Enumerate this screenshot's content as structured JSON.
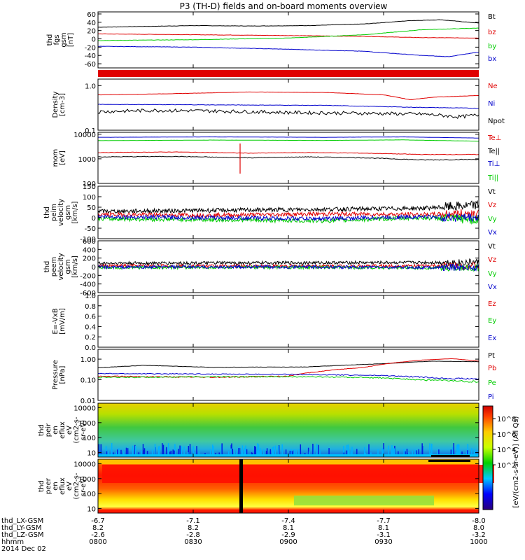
{
  "title": "P3 (TH-D) fields and on-board moments overview",
  "date": "2014 Dec 02",
  "colors": {
    "black": "#000000",
    "red": "#e00000",
    "green": "#00cc00",
    "blue": "#0000cc"
  },
  "chart_data": [
    {
      "type": "line",
      "id": "fgs",
      "ylabel": [
        "thd",
        "fgs",
        "gsm",
        "[nT]"
      ],
      "yticks": [
        "60",
        "40",
        "20",
        "0",
        "-20",
        "-40",
        "-60"
      ],
      "ylim": [
        -70,
        65
      ],
      "series": [
        {
          "name": "Bt",
          "color": "#000000",
          "points": [
            [
              0,
              28
            ],
            [
              0.12,
              30
            ],
            [
              0.25,
              32
            ],
            [
              0.4,
              31
            ],
            [
              0.55,
              32
            ],
            [
              0.7,
              36
            ],
            [
              0.82,
              44
            ],
            [
              0.9,
              46
            ],
            [
              1,
              38
            ]
          ]
        },
        {
          "name": "bz",
          "color": "#e00000",
          "points": [
            [
              0,
              12
            ],
            [
              0.25,
              10
            ],
            [
              0.5,
              8
            ],
            [
              0.7,
              6
            ],
            [
              0.85,
              3
            ],
            [
              1,
              2
            ]
          ]
        },
        {
          "name": "by",
          "color": "#00cc00",
          "points": [
            [
              0,
              -4
            ],
            [
              0.25,
              -2
            ],
            [
              0.5,
              2
            ],
            [
              0.7,
              10
            ],
            [
              0.85,
              22
            ],
            [
              1,
              26
            ]
          ]
        },
        {
          "name": "bx",
          "color": "#0000cc",
          "points": [
            [
              0,
              -18
            ],
            [
              0.25,
              -20
            ],
            [
              0.5,
              -25
            ],
            [
              0.7,
              -30
            ],
            [
              0.85,
              -40
            ],
            [
              0.92,
              -43
            ],
            [
              1,
              -32
            ]
          ]
        }
      ]
    },
    {
      "type": "bar",
      "id": "flags",
      "color": "#e00000",
      "ylabel": []
    },
    {
      "type": "line",
      "id": "density",
      "ylabel": [
        "Density",
        "[cm-3]"
      ],
      "yticks": [
        "1.0",
        "0.1"
      ],
      "ylim": [
        0.1,
        1.4
      ],
      "scale": "log",
      "series": [
        {
          "name": "Ne",
          "color": "#e00000",
          "points": [
            [
              0,
              0.62
            ],
            [
              0.2,
              0.66
            ],
            [
              0.4,
              0.72
            ],
            [
              0.6,
              0.7
            ],
            [
              0.75,
              0.62
            ],
            [
              0.82,
              0.48
            ],
            [
              0.88,
              0.55
            ],
            [
              1,
              0.6
            ]
          ]
        },
        {
          "name": "Ni",
          "color": "#0000cc",
          "points": [
            [
              0,
              0.38
            ],
            [
              0.3,
              0.37
            ],
            [
              0.6,
              0.36
            ],
            [
              0.8,
              0.33
            ],
            [
              1,
              0.31
            ]
          ]
        },
        {
          "name": "Npot",
          "color": "#000000",
          "points": [
            [
              0,
              0.26
            ],
            [
              0.15,
              0.28
            ],
            [
              0.3,
              0.27
            ],
            [
              0.5,
              0.25
            ],
            [
              0.7,
              0.24
            ],
            [
              0.85,
              0.23
            ],
            [
              0.95,
              0.2
            ],
            [
              1,
              0.22
            ]
          ]
        }
      ]
    },
    {
      "type": "line",
      "id": "mom",
      "ylabel": [
        "mom",
        "[eV]"
      ],
      "yticks": [
        "10000",
        "1000",
        "100"
      ],
      "ylim": [
        100,
        12000
      ],
      "scale": "log",
      "series": [
        {
          "name": "Te⊥",
          "color": "#e00000",
          "points": [
            [
              0,
              1800
            ],
            [
              0.2,
              1900
            ],
            [
              0.4,
              1700
            ],
            [
              0.55,
              1800
            ],
            [
              0.7,
              1700
            ],
            [
              0.85,
              1500
            ],
            [
              1,
              1500
            ]
          ]
        },
        {
          "name": "Te||",
          "color": "#000000",
          "points": [
            [
              0,
              1200
            ],
            [
              0.2,
              1250
            ],
            [
              0.4,
              1100
            ],
            [
              0.55,
              1200
            ],
            [
              0.7,
              1100
            ],
            [
              0.85,
              900
            ],
            [
              1,
              950
            ]
          ]
        },
        {
          "name": "Ti⊥",
          "color": "#0000cc",
          "points": [
            [
              0,
              7500
            ],
            [
              0.3,
              7800
            ],
            [
              0.6,
              7500
            ],
            [
              0.8,
              7800
            ],
            [
              1,
              7000
            ]
          ]
        },
        {
          "name": "Ti||",
          "color": "#00cc00",
          "points": [
            [
              0,
              5500
            ],
            [
              0.3,
              5800
            ],
            [
              0.6,
              5600
            ],
            [
              0.8,
              5900
            ],
            [
              1,
              5200
            ]
          ]
        }
      ]
    },
    {
      "type": "line",
      "id": "vel1",
      "ylabel": [
        "thd",
        "peim",
        "velocity",
        "gsm",
        "[km/s]"
      ],
      "yticks": [
        "150",
        "100",
        "50",
        "0",
        "-50",
        "-100"
      ],
      "ylim": [
        -100,
        150
      ],
      "series": [
        {
          "name": "Vt",
          "color": "#000000",
          "points": [
            [
              0,
              30
            ],
            [
              0.3,
              35
            ],
            [
              0.6,
              40
            ],
            [
              0.85,
              45
            ],
            [
              1,
              60
            ]
          ]
        },
        {
          "name": "Vz",
          "color": "#e00000",
          "points": [
            [
              0,
              15
            ],
            [
              0.3,
              12
            ],
            [
              0.6,
              18
            ],
            [
              0.85,
              15
            ],
            [
              1,
              20
            ]
          ]
        },
        {
          "name": "Vy",
          "color": "#00cc00",
          "points": [
            [
              0,
              -5
            ],
            [
              0.3,
              -10
            ],
            [
              0.6,
              -15
            ],
            [
              0.85,
              0
            ],
            [
              1,
              -10
            ]
          ]
        },
        {
          "name": "Vx",
          "color": "#0000cc",
          "points": [
            [
              0,
              5
            ],
            [
              0.3,
              0
            ],
            [
              0.6,
              -5
            ],
            [
              0.85,
              5
            ],
            [
              1,
              0
            ]
          ]
        }
      ]
    },
    {
      "type": "line",
      "id": "vel2",
      "ylabel": [
        "thd",
        "peem",
        "velocity",
        "gsm",
        "[km/s]"
      ],
      "yticks": [
        "600",
        "400",
        "200",
        "0",
        "-200",
        "-400",
        "-600"
      ],
      "ylim": [
        -600,
        600
      ],
      "series": [
        {
          "name": "Vt",
          "color": "#000000",
          "points": [
            [
              0,
              80
            ],
            [
              0.5,
              90
            ],
            [
              1,
              100
            ]
          ]
        },
        {
          "name": "Vz",
          "color": "#e00000",
          "points": [
            [
              0,
              20
            ],
            [
              0.5,
              15
            ],
            [
              1,
              20
            ]
          ]
        },
        {
          "name": "Vy",
          "color": "#00cc00",
          "points": [
            [
              0,
              -20
            ],
            [
              0.5,
              -15
            ],
            [
              1,
              -30
            ]
          ]
        },
        {
          "name": "Vx",
          "color": "#0000cc",
          "points": [
            [
              0,
              -10
            ],
            [
              0.5,
              -5
            ],
            [
              1,
              -20
            ]
          ]
        }
      ]
    },
    {
      "type": "line",
      "id": "efield",
      "ylabel": [
        "E=-VxB",
        "[mV/m]"
      ],
      "yticks": [
        "1.0",
        "0.8",
        "0.6",
        "0.4",
        "0.2",
        "0.0"
      ],
      "ylim": [
        0,
        1
      ],
      "series": [
        {
          "name": "Ez",
          "color": "#e00000",
          "points": []
        },
        {
          "name": "Ey",
          "color": "#00cc00",
          "points": []
        },
        {
          "name": "Ex",
          "color": "#0000cc",
          "points": []
        }
      ]
    },
    {
      "type": "line",
      "id": "pressure",
      "ylabel": [
        "Pressure",
        "[nPa]"
      ],
      "yticks": [
        "1.00",
        "0.10",
        "0.01"
      ],
      "ylim": [
        0.01,
        3
      ],
      "scale": "log",
      "series": [
        {
          "name": "Pt",
          "color": "#000000",
          "points": [
            [
              0,
              0.38
            ],
            [
              0.12,
              0.5
            ],
            [
              0.3,
              0.4
            ],
            [
              0.55,
              0.42
            ],
            [
              0.75,
              0.6
            ],
            [
              0.88,
              0.8
            ],
            [
              1,
              0.75
            ]
          ]
        },
        {
          "name": "Pb",
          "color": "#e00000",
          "points": [
            [
              0,
              0.15
            ],
            [
              0.3,
              0.13
            ],
            [
              0.5,
              0.15
            ],
            [
              0.7,
              0.4
            ],
            [
              0.85,
              0.9
            ],
            [
              0.93,
              1.05
            ],
            [
              1,
              0.8
            ]
          ]
        },
        {
          "name": "Pe",
          "color": "#00cc00",
          "points": [
            [
              0,
              0.13
            ],
            [
              0.3,
              0.14
            ],
            [
              0.55,
              0.14
            ],
            [
              0.7,
              0.13
            ],
            [
              0.85,
              0.1
            ],
            [
              1,
              0.08
            ]
          ]
        },
        {
          "name": "Pi",
          "color": "#0000cc",
          "points": [
            [
              0,
              0.2
            ],
            [
              0.3,
              0.19
            ],
            [
              0.55,
              0.18
            ],
            [
              0.75,
              0.16
            ],
            [
              0.9,
              0.12
            ],
            [
              1,
              0.11
            ]
          ]
        }
      ]
    },
    {
      "type": "heatmap",
      "id": "peir",
      "ylabel": [
        "thd",
        "peir",
        "en",
        "eflux",
        "eV",
        "(cm2-s-",
        "sr-eV)"
      ],
      "yticks": [
        "10000",
        "1000",
        "100",
        "10"
      ],
      "ylim": [
        5,
        20000
      ],
      "scale": "log"
    },
    {
      "type": "heatmap",
      "id": "peer",
      "ylabel": [
        "thd",
        "peer",
        "en",
        "eflux",
        "eV",
        "(cm2-s-",
        "sr-eV)"
      ],
      "yticks": [
        "10000",
        "1000",
        "100",
        "10"
      ],
      "ylim": [
        5,
        20000
      ],
      "scale": "log"
    }
  ],
  "colorbar": {
    "label": "[eV/(cm2-s-sr-eV)] (All Qs)",
    "ticks": [
      "10^8",
      "10^6",
      "10^4",
      "10^2"
    ]
  },
  "xaxis": {
    "rows": [
      {
        "label": "thd_LX-GSM",
        "values": [
          "-6.7",
          "-7.1",
          "-7.4",
          "-7.7",
          "-8.0"
        ]
      },
      {
        "label": "thd_LY-GSM",
        "values": [
          "8.2",
          "8.2",
          "8.1",
          "8.1",
          "8.0"
        ]
      },
      {
        "label": "thd_LZ-GSM",
        "values": [
          "-2.6",
          "-2.8",
          "-2.9",
          "-3.1",
          "-3.2"
        ]
      },
      {
        "label": "hhmm",
        "values": [
          "0800",
          "0830",
          "0900",
          "0930",
          "1000"
        ]
      }
    ]
  }
}
